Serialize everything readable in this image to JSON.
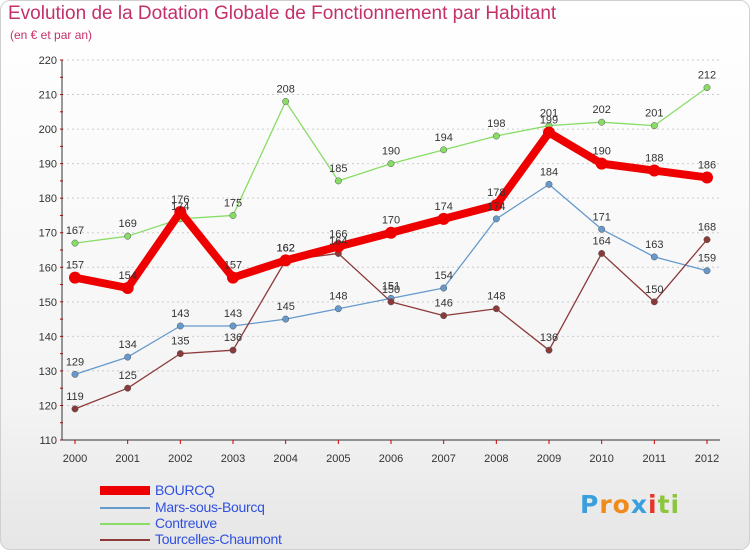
{
  "header": {
    "title": "Evolution de la Dotation Globale de Fonctionnement par Habitant",
    "subtitle": "(en € et par an)"
  },
  "chart_data": {
    "type": "line",
    "x": [
      "2000",
      "2001",
      "2002",
      "2003",
      "2004",
      "2005",
      "2006",
      "2007",
      "2008",
      "2009",
      "2010",
      "2011",
      "2012"
    ],
    "ylim": [
      110,
      220
    ],
    "yticks": [
      110,
      120,
      130,
      140,
      150,
      160,
      170,
      180,
      190,
      200,
      210,
      220
    ],
    "grid": "horizontal-dotted",
    "series": [
      {
        "name": "Contreuve",
        "color": "#88dd66",
        "values": [
          167,
          169,
          174,
          175,
          208,
          185,
          190,
          194,
          198,
          201,
          202,
          201,
          212
        ],
        "labels": [
          "167",
          "169",
          "174",
          "175",
          "208",
          "185",
          "190",
          "194",
          "198",
          "201",
          "202",
          "201",
          "212"
        ]
      },
      {
        "name": "Mars-sous-Bourcq",
        "color": "#6699cc",
        "values": [
          129,
          134,
          143,
          143,
          145,
          148,
          151,
          154,
          174,
          184,
          171,
          163,
          159
        ],
        "labels": [
          "129",
          "134",
          "143",
          "143",
          "145",
          "148",
          "151",
          "154",
          "174",
          "184",
          "171",
          "163",
          "159"
        ]
      },
      {
        "name": "Tourcelles-Chaumont",
        "color": "#8b3a3a",
        "values": [
          119,
          125,
          135,
          136,
          162,
          164,
          150,
          146,
          148,
          136,
          164,
          150,
          168
        ],
        "labels": [
          "119",
          "125",
          "135",
          "136",
          "162",
          "164",
          "150",
          "146",
          "148",
          "136",
          "164",
          "150",
          "168"
        ]
      },
      {
        "name": "BOURCQ",
        "color": "#ee0000",
        "values": [
          157,
          154,
          176,
          157,
          162,
          166,
          170,
          174,
          178,
          199,
          190,
          188,
          186
        ],
        "labels": [
          "157",
          "154",
          "176",
          "157",
          "162",
          "166",
          "170",
          "174",
          "178",
          "199",
          "190",
          "188",
          "186"
        ]
      }
    ],
    "legend": [
      "BOURCQ",
      "Mars-sous-Bourcq",
      "Contreuve",
      "Tourcelles-Chaumont"
    ],
    "legend_colors": [
      "#ee0000",
      "#6699cc",
      "#88dd66",
      "#8b3a3a"
    ]
  },
  "logo": {
    "letters": [
      "P",
      "r",
      "o",
      "x",
      "i",
      "t",
      "i"
    ],
    "colors": [
      "#3aa0dd",
      "#f08a1a",
      "#f08a1a",
      "#3aa0dd",
      "#e4342c",
      "#8cc63e",
      "#8cc63e"
    ]
  }
}
